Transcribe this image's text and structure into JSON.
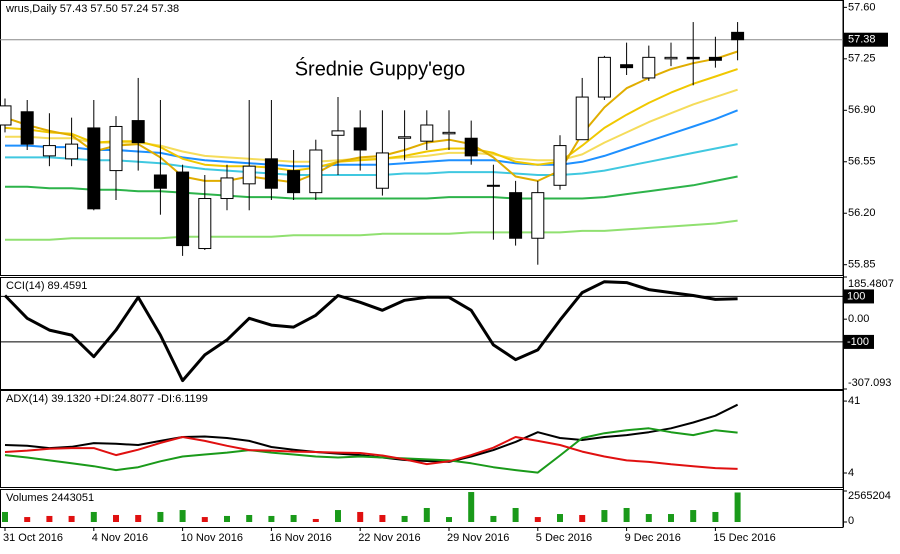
{
  "chart_data": [
    {
      "type": "candlestick",
      "header": "wrus,Daily  57.43 57.50 57.24 57.38",
      "annotation": "Średnie Guppy'ego",
      "categories": [
        "31 Oct 2016",
        null,
        null,
        null,
        "4 Nov 2016",
        null,
        null,
        null,
        "10 Nov 2016",
        null,
        null,
        null,
        "16 Nov 2016",
        null,
        null,
        null,
        "22 Nov 2016",
        null,
        null,
        null,
        "29 Nov 2016",
        null,
        null,
        null,
        "5 Dec 2016",
        null,
        null,
        null,
        "9 Dec 2016",
        null,
        null,
        null,
        "15 Dec 2016",
        null
      ],
      "open": [
        56.8,
        56.89,
        56.59,
        56.57,
        56.78,
        56.49,
        56.83,
        56.46,
        56.48,
        55.96,
        56.3,
        56.4,
        56.57,
        56.49,
        56.34,
        56.73,
        56.78,
        56.37,
        56.71,
        56.69,
        56.74,
        56.71,
        56.39,
        56.34,
        56.03,
        56.39,
        56.7,
        56.99,
        57.21,
        57.12,
        57.25,
        57.26,
        57.26,
        57.43
      ],
      "high": [
        56.98,
        56.97,
        56.88,
        56.85,
        56.97,
        56.86,
        57.12,
        56.97,
        56.53,
        56.46,
        56.53,
        56.97,
        56.97,
        56.63,
        56.7,
        56.99,
        56.9,
        56.9,
        56.9,
        56.9,
        56.9,
        56.83,
        56.53,
        56.42,
        56.42,
        56.73,
        57.12,
        57.27,
        57.36,
        57.34,
        57.36,
        57.5,
        57.4,
        57.5
      ],
      "low": [
        56.75,
        56.63,
        56.52,
        56.52,
        56.22,
        56.29,
        56.49,
        56.19,
        55.91,
        55.95,
        56.22,
        56.22,
        56.29,
        56.29,
        56.29,
        56.46,
        56.49,
        56.32,
        56.56,
        56.63,
        56.63,
        56.53,
        56.02,
        55.98,
        55.85,
        56.36,
        56.7,
        56.97,
        57.14,
        57.1,
        57.2,
        57.07,
        57.19,
        57.24
      ],
      "close": [
        56.93,
        56.67,
        56.66,
        56.67,
        56.23,
        56.79,
        56.68,
        56.37,
        55.98,
        56.3,
        56.44,
        56.52,
        56.37,
        56.34,
        56.63,
        56.76,
        56.63,
        56.61,
        56.72,
        56.8,
        56.75,
        56.59,
        56.39,
        56.03,
        56.34,
        56.66,
        56.99,
        57.26,
        57.19,
        57.26,
        57.26,
        57.25,
        57.24,
        57.38
      ],
      "up_color": "#ffffff",
      "down_color": "#000000",
      "series": [
        {
          "color": "#e0ad00",
          "values": [
            56.85,
            56.8,
            56.76,
            56.73,
            56.62,
            56.66,
            56.67,
            56.58,
            56.45,
            56.42,
            56.42,
            56.45,
            56.43,
            56.41,
            56.47,
            56.55,
            56.58,
            56.59,
            56.63,
            56.68,
            56.7,
            56.67,
            56.58,
            56.45,
            56.42,
            56.49,
            56.74,
            56.92,
            57.05,
            57.12,
            57.18,
            57.22,
            57.25,
            57.3
          ]
        },
        {
          "color": "#f0c800",
          "values": [
            56.78,
            56.77,
            56.75,
            56.74,
            56.68,
            56.69,
            56.69,
            56.65,
            56.57,
            56.53,
            56.52,
            56.52,
            56.51,
            56.49,
            56.51,
            56.55,
            56.56,
            56.57,
            56.59,
            56.62,
            56.64,
            56.64,
            56.61,
            56.55,
            56.53,
            56.55,
            56.66,
            56.78,
            56.87,
            56.95,
            57.02,
            57.08,
            57.13,
            57.18
          ]
        },
        {
          "color": "#f5dc5a",
          "values": [
            56.72,
            56.72,
            56.71,
            56.71,
            56.68,
            56.68,
            56.68,
            56.66,
            56.62,
            56.59,
            56.58,
            56.57,
            56.56,
            56.55,
            56.55,
            56.56,
            56.57,
            56.57,
            56.58,
            56.59,
            56.61,
            56.61,
            56.6,
            56.57,
            56.56,
            56.56,
            56.6,
            56.68,
            56.75,
            56.82,
            56.88,
            56.94,
            56.99,
            57.04
          ]
        },
        {
          "color": "#1e90ff",
          "values": [
            56.66,
            56.66,
            56.65,
            56.65,
            56.63,
            56.63,
            56.62,
            56.61,
            56.58,
            56.56,
            56.55,
            56.54,
            56.53,
            56.52,
            56.52,
            56.53,
            56.53,
            56.53,
            56.54,
            56.55,
            56.56,
            56.56,
            56.56,
            56.54,
            56.53,
            56.53,
            56.55,
            56.59,
            56.64,
            56.69,
            56.74,
            56.79,
            56.84,
            56.9
          ]
        },
        {
          "color": "#40c8e0",
          "values": [
            56.58,
            56.58,
            56.58,
            56.57,
            56.56,
            56.56,
            56.55,
            56.54,
            56.52,
            56.5,
            56.49,
            56.48,
            56.47,
            56.46,
            56.46,
            56.46,
            56.46,
            56.46,
            56.47,
            56.47,
            56.48,
            56.48,
            56.48,
            56.47,
            56.46,
            56.46,
            56.47,
            56.49,
            56.52,
            56.55,
            56.58,
            56.61,
            56.64,
            56.67
          ]
        },
        {
          "color": "#2db34a",
          "values": [
            56.38,
            56.38,
            56.37,
            56.37,
            56.36,
            56.36,
            56.35,
            56.35,
            56.34,
            56.33,
            56.32,
            56.31,
            56.31,
            56.3,
            56.3,
            56.3,
            56.3,
            56.3,
            56.3,
            56.3,
            56.31,
            56.31,
            56.31,
            56.3,
            56.3,
            56.3,
            56.3,
            56.31,
            56.33,
            56.35,
            56.37,
            56.39,
            56.42,
            56.45
          ]
        },
        {
          "color": "#90e070",
          "values": [
            56.02,
            56.02,
            56.02,
            56.03,
            56.03,
            56.03,
            56.03,
            56.03,
            56.04,
            56.04,
            56.04,
            56.04,
            56.04,
            56.05,
            56.05,
            56.05,
            56.05,
            56.06,
            56.06,
            56.06,
            56.06,
            56.07,
            56.07,
            56.07,
            56.07,
            56.07,
            56.08,
            56.08,
            56.09,
            56.1,
            56.11,
            56.12,
            56.13,
            56.15
          ]
        }
      ],
      "current_price": 57.38,
      "ylim": [
        55.78,
        57.65
      ],
      "yticks": [
        {
          "value": 57.6,
          "label": "57.60"
        },
        57.25,
        {
          "value": 56.9,
          "label": "56.90"
        },
        56.55,
        {
          "value": 56.2,
          "label": "56.20"
        },
        55.85
      ]
    },
    {
      "type": "line",
      "header": "CCI(14) 89.4591",
      "series": [
        {
          "color": "#000000",
          "values": [
            104,
            4,
            -48,
            -70,
            -165,
            -48,
            96,
            -70,
            -270,
            -157,
            -91,
            4,
            -26,
            -35,
            17,
            104,
            74,
            39,
            83,
            96,
            96,
            39,
            -113,
            -178,
            -135,
            -4,
            117,
            165,
            161,
            130,
            117,
            104,
            87,
            89.4591
          ]
        }
      ],
      "levels": [
        100,
        -100
      ],
      "ylim": [
        -307.093,
        185.4807
      ],
      "yticks": [
        185.4807,
        100,
        {
          "value": 0,
          "label": "0.00"
        },
        -100,
        -307.093
      ]
    },
    {
      "type": "line",
      "header": "ADX(14) 39.1320 +DI:24.8077 -DI:6.1199",
      "series": [
        {
          "color": "#000000",
          "values": [
            18.4,
            18.0,
            16.8,
            17.5,
            19.4,
            19.0,
            18.4,
            20.5,
            22.5,
            22.8,
            22.0,
            20.5,
            17.4,
            16.0,
            14.8,
            14.0,
            13.2,
            12.0,
            10.7,
            10.2,
            9.7,
            12.5,
            15.8,
            20.0,
            25.0,
            22.0,
            21.0,
            22.5,
            23.5,
            25.0,
            27.0,
            30.0,
            33.5,
            39.132
          ]
        },
        {
          "color": "#1a9a1a",
          "values": [
            13.2,
            12.0,
            10.5,
            9.0,
            7.5,
            5.5,
            7.0,
            10.0,
            12.5,
            13.5,
            14.5,
            15.8,
            14.5,
            13.5,
            12.5,
            12.0,
            12.5,
            12.0,
            11.5,
            11.0,
            10.5,
            9.0,
            7.0,
            5.5,
            4.2,
            13.0,
            22.0,
            24.5,
            26.0,
            27.0,
            25.0,
            23.5,
            26.0,
            24.8077
          ]
        },
        {
          "color": "#e01010",
          "values": [
            14.8,
            15.5,
            16.5,
            16.8,
            16.8,
            13.2,
            16.0,
            19.5,
            22.5,
            20.5,
            18.0,
            15.8,
            15.5,
            15.0,
            14.8,
            14.5,
            14.3,
            13.0,
            11.0,
            8.6,
            10.0,
            13.2,
            17.0,
            22.5,
            20.5,
            18.4,
            15.0,
            12.5,
            10.5,
            9.7,
            8.5,
            7.5,
            6.5,
            6.1199
          ]
        }
      ],
      "ylim": [
        -3.2,
        46.7
      ],
      "yticks": [
        41,
        4
      ]
    },
    {
      "type": "bar",
      "header": "Volumes 2443051",
      "values": [
        830000,
        410000,
        500000,
        500000,
        830000,
        580000,
        580000,
        830000,
        990000,
        410000,
        500000,
        580000,
        500000,
        580000,
        250000,
        990000,
        830000,
        580000,
        500000,
        1160000,
        410000,
        2480000,
        500000,
        1160000,
        410000,
        660000,
        580000,
        990000,
        1160000,
        660000,
        660000,
        990000,
        830000,
        2443051
      ],
      "colors": [
        "#1a9a1a",
        "#e01010",
        "#e01010",
        "#e01010",
        "#1a9a1a",
        "#e01010",
        "#e01010",
        "#1a9a1a",
        "#1a9a1a",
        "#e01010",
        "#1a9a1a",
        "#1a9a1a",
        "#1a9a1a",
        "#1a9a1a",
        "#e01010",
        "#1a9a1a",
        "#e01010",
        "#e01010",
        "#1a9a1a",
        "#1a9a1a",
        "#1a9a1a",
        "#1a9a1a",
        "#1a9a1a",
        "#1a9a1a",
        "#e01010",
        "#1a9a1a",
        "#e01010",
        "#1a9a1a",
        "#1a9a1a",
        "#1a9a1a",
        "#1a9a1a",
        "#1a9a1a",
        "#1a9a1a",
        "#1a9a1a"
      ],
      "ylim": [
        0,
        2565204
      ],
      "yticks": [
        2565204,
        0
      ]
    }
  ]
}
